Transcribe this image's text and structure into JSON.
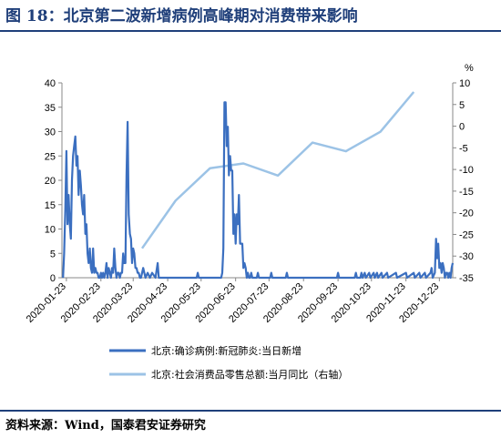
{
  "title": "图 18：北京第二波新增病例高峰期对消费带来影响",
  "source": "资料来源：Wind，国泰君安证券研究",
  "colors": {
    "title": "#1f3f7a",
    "series_cases": "#3b6fc0",
    "series_retail": "#9cc3e6"
  },
  "chart_data": {
    "type": "line",
    "x_tick_labels": [
      "2020-01-23",
      "2020-02-23",
      "2020-03-23",
      "2020-04-23",
      "2020-05-23",
      "2020-06-23",
      "2020-07-23",
      "2020-08-23",
      "2020-09-23",
      "2020-10-23",
      "2020-11-23",
      "2020-12-23"
    ],
    "left_axis": {
      "ylim": [
        0,
        40
      ],
      "ticks": [
        0,
        5,
        10,
        15,
        20,
        25,
        30,
        35,
        40
      ]
    },
    "right_axis": {
      "unit": "%",
      "ylim": [
        -35,
        10
      ],
      "ticks": [
        10,
        5,
        0,
        -5,
        -10,
        -15,
        -20,
        -25,
        -30,
        -35
      ]
    },
    "grid": false,
    "legend_position": "bottom",
    "series": [
      {
        "name": "北京:确诊病例:新冠肺炎:当日新增",
        "axis": "left",
        "points": [
          [
            "2020-01-20",
            0
          ],
          [
            "2020-01-21",
            5
          ],
          [
            "2020-01-22",
            14
          ],
          [
            "2020-01-23",
            26
          ],
          [
            "2020-01-24",
            11
          ],
          [
            "2020-01-25",
            17
          ],
          [
            "2020-01-26",
            11
          ],
          [
            "2020-01-27",
            8
          ],
          [
            "2020-01-28",
            20
          ],
          [
            "2020-01-29",
            25
          ],
          [
            "2020-01-30",
            27
          ],
          [
            "2020-01-31",
            29
          ],
          [
            "2020-02-01",
            23
          ],
          [
            "2020-02-02",
            25
          ],
          [
            "2020-02-03",
            17
          ],
          [
            "2020-02-04",
            22
          ],
          [
            "2020-02-05",
            19
          ],
          [
            "2020-02-06",
            15
          ],
          [
            "2020-02-07",
            13
          ],
          [
            "2020-02-08",
            17
          ],
          [
            "2020-02-09",
            9
          ],
          [
            "2020-02-10",
            11
          ],
          [
            "2020-02-11",
            5
          ],
          [
            "2020-02-12",
            3
          ],
          [
            "2020-02-13",
            6
          ],
          [
            "2020-02-14",
            2
          ],
          [
            "2020-02-15",
            1
          ],
          [
            "2020-02-16",
            6
          ],
          [
            "2020-02-17",
            1
          ],
          [
            "2020-02-18",
            2
          ],
          [
            "2020-02-19",
            1
          ],
          [
            "2020-02-20",
            1
          ],
          [
            "2020-02-21",
            0
          ],
          [
            "2020-02-22",
            0
          ],
          [
            "2020-02-23",
            1
          ],
          [
            "2020-02-24",
            0
          ],
          [
            "2020-02-25",
            1
          ],
          [
            "2020-02-26",
            0
          ],
          [
            "2020-02-27",
            1
          ],
          [
            "2020-02-28",
            3
          ],
          [
            "2020-02-29",
            0
          ],
          [
            "2020-03-01",
            2
          ],
          [
            "2020-03-02",
            1
          ],
          [
            "2020-03-03",
            0
          ],
          [
            "2020-03-04",
            2
          ],
          [
            "2020-03-05",
            1
          ],
          [
            "2020-03-06",
            6
          ],
          [
            "2020-03-07",
            2
          ],
          [
            "2020-03-08",
            0
          ],
          [
            "2020-03-09",
            1
          ],
          [
            "2020-03-10",
            1
          ],
          [
            "2020-03-11",
            0
          ],
          [
            "2020-03-12",
            1
          ],
          [
            "2020-03-13",
            1
          ],
          [
            "2020-03-14",
            5
          ],
          [
            "2020-03-15",
            3
          ],
          [
            "2020-03-16",
            3
          ],
          [
            "2020-03-17",
            21
          ],
          [
            "2020-03-18",
            32
          ],
          [
            "2020-03-19",
            13
          ],
          [
            "2020-03-20",
            9
          ],
          [
            "2020-03-21",
            8
          ],
          [
            "2020-03-22",
            3
          ],
          [
            "2020-03-23",
            6
          ],
          [
            "2020-03-24",
            5
          ],
          [
            "2020-03-25",
            2
          ],
          [
            "2020-03-26",
            2
          ],
          [
            "2020-03-27",
            1
          ],
          [
            "2020-03-28",
            1
          ],
          [
            "2020-03-29",
            0
          ],
          [
            "2020-03-30",
            0
          ],
          [
            "2020-03-31",
            1
          ],
          [
            "2020-04-01",
            2
          ],
          [
            "2020-04-03",
            0
          ],
          [
            "2020-04-05",
            1
          ],
          [
            "2020-04-07",
            0
          ],
          [
            "2020-04-09",
            1
          ],
          [
            "2020-04-12",
            0
          ],
          [
            "2020-04-14",
            3
          ],
          [
            "2020-04-15",
            0
          ],
          [
            "2020-04-20",
            0
          ],
          [
            "2020-05-05",
            0
          ],
          [
            "2020-05-19",
            0
          ],
          [
            "2020-05-20",
            1
          ],
          [
            "2020-05-21",
            0
          ],
          [
            "2020-06-10",
            0
          ],
          [
            "2020-06-11",
            1
          ],
          [
            "2020-06-12",
            6
          ],
          [
            "2020-06-13",
            36
          ],
          [
            "2020-06-14",
            36
          ],
          [
            "2020-06-15",
            27
          ],
          [
            "2020-06-16",
            31
          ],
          [
            "2020-06-17",
            21
          ],
          [
            "2020-06-18",
            25
          ],
          [
            "2020-06-19",
            22
          ],
          [
            "2020-06-20",
            22
          ],
          [
            "2020-06-21",
            9
          ],
          [
            "2020-06-22",
            13
          ],
          [
            "2020-06-23",
            7
          ],
          [
            "2020-06-24",
            13
          ],
          [
            "2020-06-25",
            11
          ],
          [
            "2020-06-26",
            17
          ],
          [
            "2020-06-27",
            7
          ],
          [
            "2020-06-28",
            7
          ],
          [
            "2020-06-29",
            7
          ],
          [
            "2020-06-30",
            2
          ],
          [
            "2020-07-01",
            3
          ],
          [
            "2020-07-02",
            2
          ],
          [
            "2020-07-03",
            0
          ],
          [
            "2020-07-04",
            1
          ],
          [
            "2020-07-05",
            0
          ],
          [
            "2020-07-06",
            0
          ],
          [
            "2020-07-07",
            1
          ],
          [
            "2020-07-08",
            0
          ],
          [
            "2020-07-12",
            0
          ],
          [
            "2020-07-13",
            1
          ],
          [
            "2020-07-14",
            0
          ],
          [
            "2020-07-24",
            0
          ],
          [
            "2020-07-25",
            1
          ],
          [
            "2020-07-26",
            0
          ],
          [
            "2020-08-07",
            0
          ],
          [
            "2020-08-08",
            1
          ],
          [
            "2020-08-09",
            0
          ],
          [
            "2020-09-22",
            0
          ],
          [
            "2020-09-23",
            1
          ],
          [
            "2020-09-24",
            0
          ],
          [
            "2020-10-08",
            0
          ],
          [
            "2020-10-09",
            1
          ],
          [
            "2020-10-10",
            0
          ],
          [
            "2020-10-13",
            0
          ],
          [
            "2020-10-14",
            1
          ],
          [
            "2020-10-15",
            0
          ],
          [
            "2020-10-17",
            1
          ],
          [
            "2020-10-18",
            0
          ],
          [
            "2020-10-21",
            1
          ],
          [
            "2020-10-22",
            0
          ],
          [
            "2020-10-25",
            1
          ],
          [
            "2020-10-26",
            0
          ],
          [
            "2020-10-28",
            1
          ],
          [
            "2020-10-29",
            0
          ],
          [
            "2020-11-01",
            1
          ],
          [
            "2020-11-02",
            0
          ],
          [
            "2020-11-06",
            1
          ],
          [
            "2020-11-07",
            0
          ],
          [
            "2020-11-14",
            1
          ],
          [
            "2020-11-15",
            0
          ],
          [
            "2020-11-23",
            1
          ],
          [
            "2020-11-24",
            0
          ],
          [
            "2020-11-30",
            1
          ],
          [
            "2020-12-01",
            0
          ],
          [
            "2020-12-05",
            1
          ],
          [
            "2020-12-06",
            0
          ],
          [
            "2020-12-10",
            1
          ],
          [
            "2020-12-11",
            0
          ],
          [
            "2020-12-15",
            1
          ],
          [
            "2020-12-16",
            2
          ],
          [
            "2020-12-17",
            0
          ],
          [
            "2020-12-19",
            1
          ],
          [
            "2020-12-20",
            8
          ],
          [
            "2020-12-21",
            4
          ],
          [
            "2020-12-22",
            7
          ],
          [
            "2020-12-23",
            2
          ],
          [
            "2020-12-24",
            3
          ],
          [
            "2020-12-25",
            1
          ],
          [
            "2020-12-26",
            3
          ],
          [
            "2020-12-27",
            2
          ],
          [
            "2020-12-28",
            0
          ],
          [
            "2020-12-29",
            1
          ],
          [
            "2020-12-30",
            1
          ],
          [
            "2020-12-31",
            0
          ],
          [
            "2021-01-01",
            1
          ],
          [
            "2021-01-02",
            0
          ],
          [
            "2021-01-03",
            2
          ],
          [
            "2021-01-04",
            3
          ]
        ]
      },
      {
        "name": "北京:社会消费品零售总额:当月同比（右轴）",
        "axis": "right",
        "points": [
          [
            "2020-03-31",
            -28.2
          ],
          [
            "2020-04-30",
            -17.2
          ],
          [
            "2020-05-31",
            -9.7
          ],
          [
            "2020-06-30",
            -8.6
          ],
          [
            "2020-07-31",
            -11.4
          ],
          [
            "2020-08-31",
            -3.8
          ],
          [
            "2020-09-30",
            -5.8
          ],
          [
            "2020-10-31",
            -1.3
          ],
          [
            "2020-11-30",
            7.9
          ]
        ]
      }
    ]
  }
}
